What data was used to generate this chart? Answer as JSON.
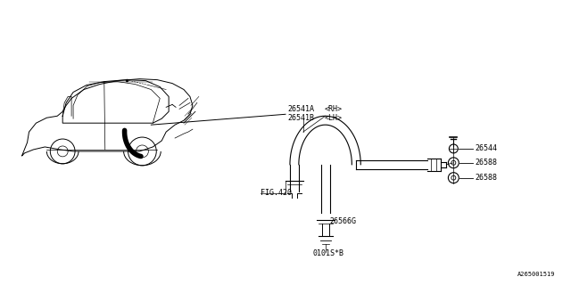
{
  "bg_color": "#ffffff",
  "line_color": "#000000",
  "fig_width": 6.4,
  "fig_height": 3.2,
  "dpi": 100,
  "watermark": "A265001519",
  "labels": {
    "part_26541A": "26541A",
    "part_26541B": "26541B",
    "rh": "<RH>",
    "lh": "<LH>",
    "fig420": "FIG.420",
    "part_26566G": "26566G",
    "part_0101SB": "0101S*B",
    "part_26544": "26544",
    "part_26588a": "26588",
    "part_26588b": "26588"
  },
  "font_size": 6,
  "small_font": 5
}
